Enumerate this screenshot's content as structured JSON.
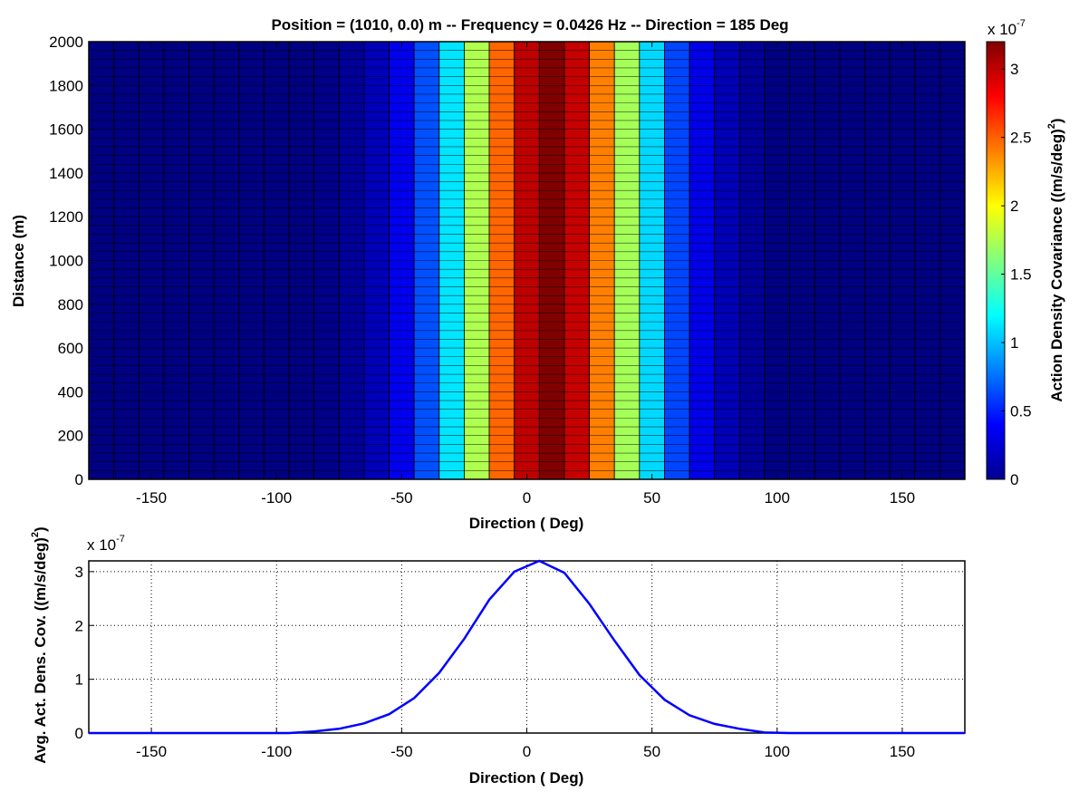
{
  "chart_data": [
    {
      "type": "heatmap",
      "title": "Position = (1010, 0.0) m -- Frequency = 0.0426 Hz -- Direction = 185 Deg",
      "xlabel": "Direction ( Deg)",
      "ylabel": "Distance (m)",
      "xlim": [
        -175,
        175
      ],
      "ylim": [
        0,
        2000
      ],
      "x_ticks": [
        -150,
        -100,
        -50,
        0,
        50,
        100,
        150
      ],
      "y_ticks": [
        0,
        200,
        400,
        600,
        800,
        1000,
        1200,
        1400,
        1600,
        1800,
        2000
      ],
      "x_bin_edges": [
        -175,
        -165,
        -155,
        -145,
        -135,
        -125,
        -115,
        -105,
        -95,
        -85,
        -75,
        -65,
        -55,
        -45,
        -35,
        -25,
        -15,
        -5,
        5,
        15,
        25,
        35,
        45,
        55,
        65,
        75,
        85,
        95,
        105,
        115,
        125,
        135,
        145,
        155,
        165,
        175
      ],
      "column_values": [
        0,
        0,
        0,
        0,
        0,
        0,
        0,
        0,
        0,
        0.03,
        0.08,
        0.18,
        0.35,
        0.65,
        1.12,
        1.75,
        2.48,
        3.0,
        3.2,
        2.98,
        2.4,
        1.72,
        1.08,
        0.62,
        0.33,
        0.17,
        0.08,
        0.01,
        0,
        0,
        0,
        0,
        0,
        0,
        0
      ],
      "value_scale": "x 10",
      "value_scale_exponent": "-7",
      "colormap": "jet",
      "colorbar": {
        "label": "Action Density Covariance ((m/s/deg)",
        "label_sup": "2",
        "label_sup2": "2",
        "range": [
          0,
          3.2
        ],
        "ticks": [
          0,
          0.5,
          1,
          1.5,
          2,
          2.5,
          3
        ],
        "tick_labels": [
          "0",
          "0.5",
          "1",
          "1.5",
          "2",
          "2.5",
          "3"
        ]
      }
    },
    {
      "type": "line",
      "xlabel": "Direction ( Deg)",
      "ylabel": "Avg. Act. Dens. Cov. ((m/s/deg)",
      "ylabel_sup": "2",
      "ylabel_sup2": "2",
      "xlim": [
        -175,
        175
      ],
      "ylim": [
        0,
        3.2
      ],
      "x_ticks": [
        -150,
        -100,
        -50,
        0,
        50,
        100,
        150
      ],
      "y_ticks": [
        0,
        1,
        2,
        3
      ],
      "y_scale": "x 10",
      "y_scale_exponent": "-7",
      "grid": true,
      "color": "#0000ff",
      "x": [
        -175,
        -165,
        -155,
        -145,
        -135,
        -125,
        -115,
        -105,
        -95,
        -85,
        -75,
        -65,
        -55,
        -45,
        -35,
        -25,
        -15,
        -5,
        5,
        15,
        25,
        35,
        45,
        55,
        65,
        75,
        85,
        95,
        105,
        115,
        125,
        135,
        145,
        155,
        165,
        175
      ],
      "y": [
        0,
        0,
        0,
        0,
        0,
        0,
        0,
        0,
        0,
        0.03,
        0.08,
        0.18,
        0.35,
        0.65,
        1.12,
        1.75,
        2.48,
        3.0,
        3.2,
        2.98,
        2.4,
        1.72,
        1.08,
        0.62,
        0.33,
        0.17,
        0.08,
        0.01,
        0,
        0,
        0,
        0,
        0,
        0,
        0,
        0
      ]
    }
  ]
}
